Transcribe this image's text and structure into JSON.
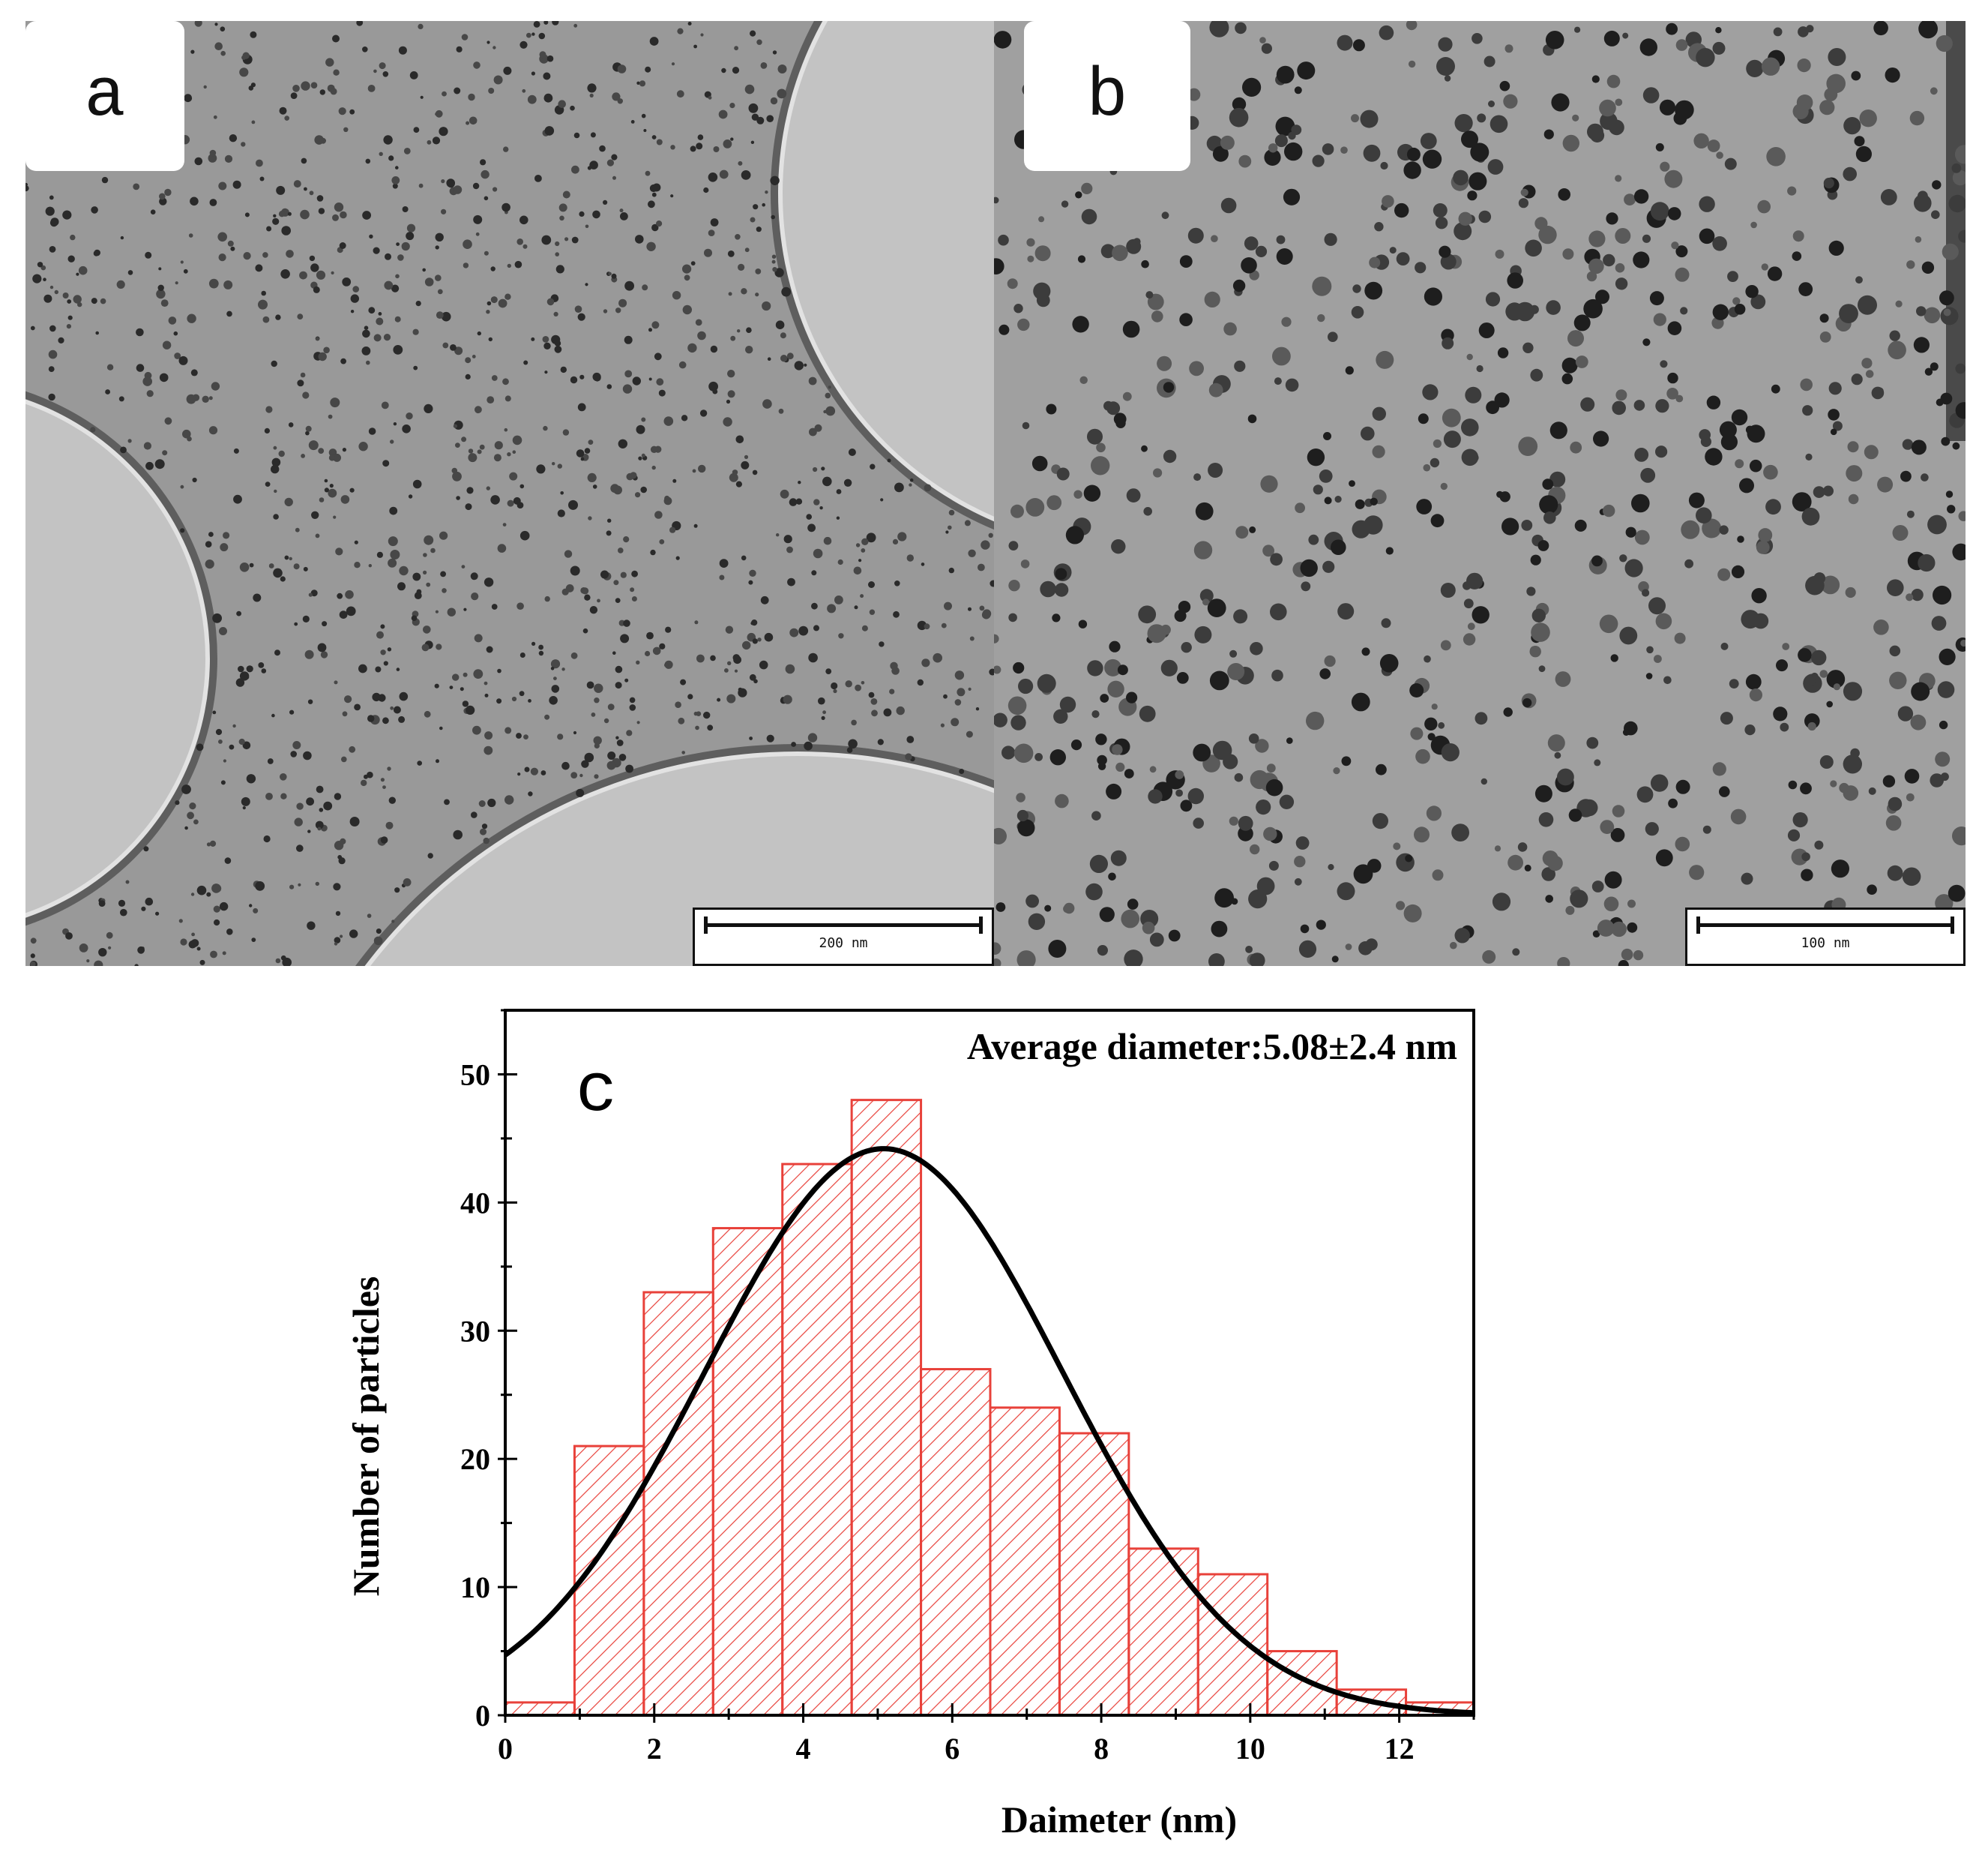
{
  "panels": {
    "a": {
      "label": "a",
      "scale_bar": "200 nm"
    },
    "b": {
      "label": "b",
      "scale_bar": "100 nm"
    }
  },
  "chart_data": {
    "type": "bar",
    "panel_label": "c",
    "annotation": "Average diameter:5.08±2.4 nm",
    "xlabel": "Daimeter (nm)",
    "ylabel": "Number of particles",
    "xlim": [
      0,
      13
    ],
    "ylim": [
      0,
      55
    ],
    "xticks": [
      0,
      2,
      4,
      6,
      8,
      10,
      12
    ],
    "yticks": [
      0,
      10,
      20,
      30,
      40,
      50
    ],
    "bins": [
      {
        "start": 0.0,
        "end": 0.93,
        "count": 1
      },
      {
        "start": 0.93,
        "end": 1.86,
        "count": 21
      },
      {
        "start": 1.86,
        "end": 2.79,
        "count": 33
      },
      {
        "start": 2.79,
        "end": 3.72,
        "count": 38
      },
      {
        "start": 3.72,
        "end": 4.65,
        "count": 43
      },
      {
        "start": 4.65,
        "end": 5.58,
        "count": 48
      },
      {
        "start": 5.58,
        "end": 6.51,
        "count": 27
      },
      {
        "start": 6.51,
        "end": 7.44,
        "count": 24
      },
      {
        "start": 7.44,
        "end": 8.37,
        "count": 22
      },
      {
        "start": 8.37,
        "end": 9.3,
        "count": 13
      },
      {
        "start": 9.3,
        "end": 10.23,
        "count": 11
      },
      {
        "start": 10.23,
        "end": 11.16,
        "count": 5
      },
      {
        "start": 11.16,
        "end": 12.09,
        "count": 2
      },
      {
        "start": 12.09,
        "end": 13.0,
        "count": 1
      }
    ],
    "fit": {
      "type": "gaussian",
      "mean": 5.08,
      "sigma": 2.4,
      "peak": 44.2
    },
    "colors": {
      "bar_edge": "#e8413a",
      "hatch": "#e8413a",
      "fit_line": "#000000",
      "axis": "#000000"
    }
  }
}
